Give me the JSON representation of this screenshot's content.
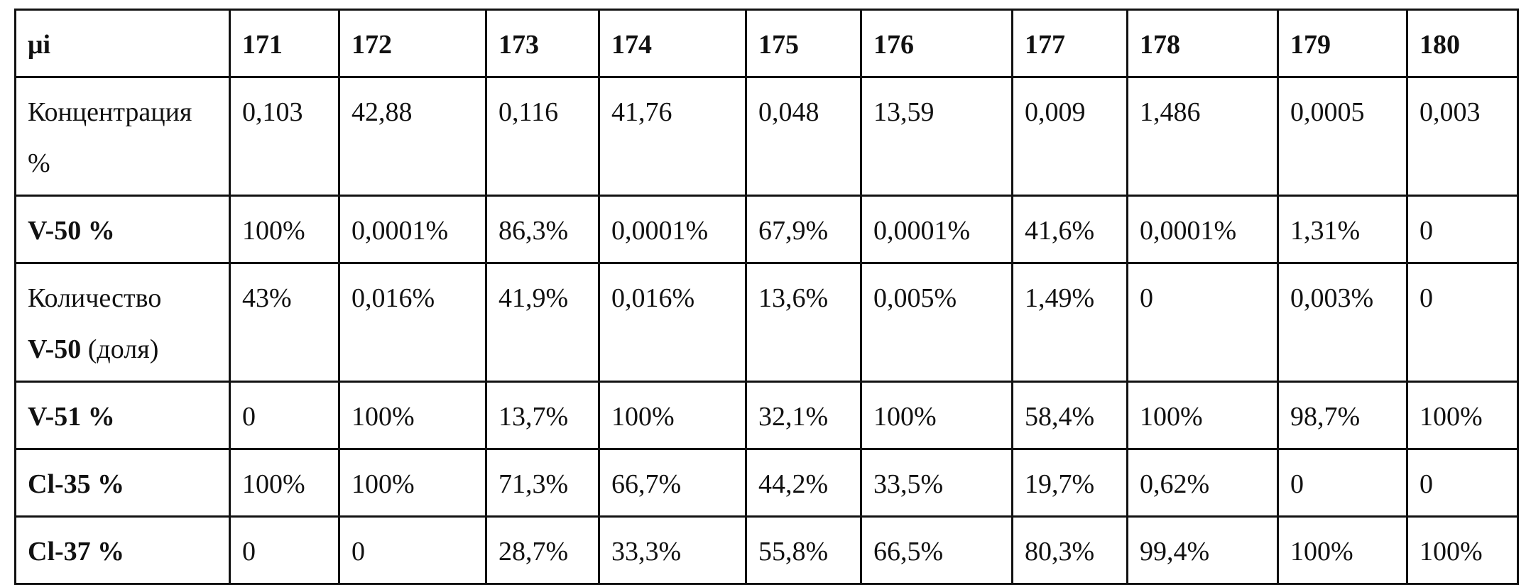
{
  "table": {
    "header": {
      "label": "μi",
      "values": [
        "171",
        "172",
        "173",
        "174",
        "175",
        "176",
        "177",
        "178",
        "179",
        "180"
      ]
    },
    "rows": [
      {
        "label_parts": [
          {
            "text": "Концентрация",
            "bold": false
          },
          {
            "text": "%",
            "bold": false
          }
        ],
        "values": [
          "0,103",
          "42,88",
          "0,116",
          "41,76",
          "0,048",
          "13,59",
          "0,009",
          "1,486",
          "0,0005",
          "0,003"
        ]
      },
      {
        "label_parts": [
          {
            "text": "V-50 %",
            "bold": true
          }
        ],
        "values": [
          "100%",
          "0,0001%",
          "86,3%",
          "0,0001%",
          "67,9%",
          "0,0001%",
          "41,6%",
          "0,0001%",
          "1,31%",
          "0"
        ]
      },
      {
        "label_parts": [
          {
            "text": "Количество",
            "bold": false
          },
          {
            "text_bold": "V-50",
            "text_rest": " (доля)"
          }
        ],
        "values": [
          "43%",
          "0,016%",
          "41,9%",
          "0,016%",
          "13,6%",
          "0,005%",
          "1,49%",
          "0",
          "0,003%",
          "0"
        ]
      },
      {
        "label_parts": [
          {
            "text": "V-51 %",
            "bold": true
          }
        ],
        "values": [
          "0",
          "100%",
          "13,7%",
          "100%",
          "32,1%",
          "100%",
          "58,4%",
          "100%",
          "98,7%",
          "100%"
        ]
      },
      {
        "label_parts": [
          {
            "text": "Cl-35 %",
            "bold": true
          }
        ],
        "values": [
          "100%",
          "100%",
          "71,3%",
          "66,7%",
          "44,2%",
          "33,5%",
          "19,7%",
          "0,62%",
          "0",
          "0"
        ]
      },
      {
        "label_parts": [
          {
            "text": "Cl-37 %",
            "bold": true
          }
        ],
        "values": [
          "0",
          "0",
          "28,7%",
          "33,3%",
          "55,8%",
          "66,5%",
          "80,3%",
          "99,4%",
          "100%",
          "100%"
        ]
      }
    ]
  }
}
